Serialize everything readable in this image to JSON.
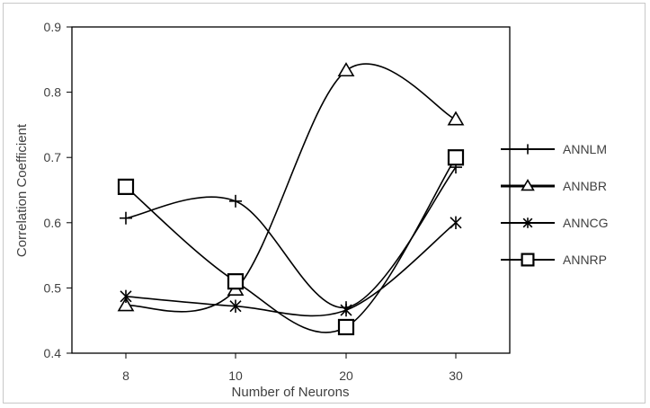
{
  "chart_data": {
    "type": "line",
    "title": "",
    "xlabel": "Number of Neurons",
    "ylabel": "Correlation Coefficient",
    "categories": [
      "8",
      "10",
      "20",
      "30"
    ],
    "ylim": [
      0.4,
      0.9
    ],
    "yticks": [
      0.4,
      0.5,
      0.6,
      0.7,
      0.8,
      0.9
    ],
    "ytick_labels": [
      "0.4",
      "0.5",
      "0.6",
      "0.7",
      "0.8",
      "0.9"
    ],
    "grid": false,
    "legend_position": "right",
    "smooth": true,
    "series": [
      {
        "name": "ANNLM",
        "marker": "plus",
        "values": [
          0.607,
          0.633,
          0.47,
          0.685
        ]
      },
      {
        "name": "ANNBR",
        "marker": "triangle",
        "values": [
          0.473,
          0.497,
          0.833,
          0.758
        ]
      },
      {
        "name": "ANNCG",
        "marker": "star",
        "values": [
          0.487,
          0.472,
          0.466,
          0.6
        ]
      },
      {
        "name": "ANNRP",
        "marker": "square",
        "values": [
          0.655,
          0.51,
          0.44,
          0.7
        ]
      }
    ],
    "line_color": "#000000"
  }
}
